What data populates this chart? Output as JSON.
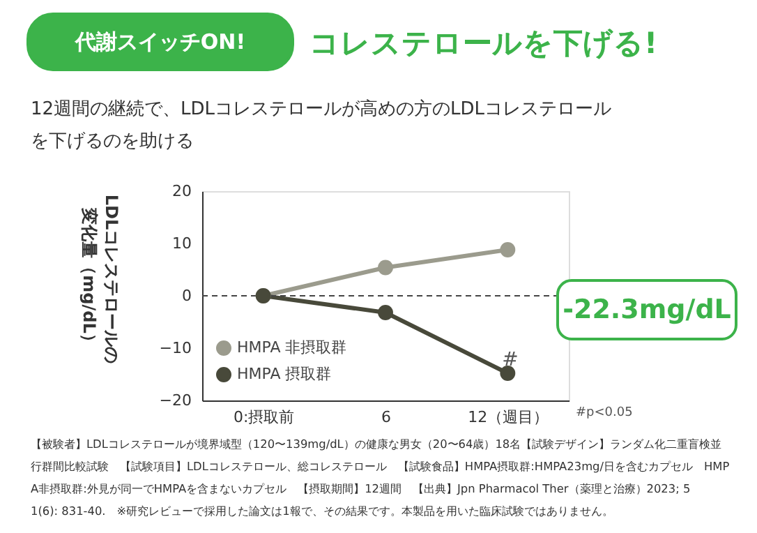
{
  "chart_data": {
    "type": "line",
    "title": "コレステロールを下げる!",
    "subtitle": "12週間の継続で、LDLコレステロールが高めの方のLDLコレステロールを下げるのを助ける",
    "ylabel": "LDLコレステロールの変化量（mg/dL）",
    "categories": [
      "0:摂取前",
      "6",
      "12（週目）"
    ],
    "series": [
      {
        "name": "HMPA 非摂取群",
        "color": "#9b9b8d",
        "values": [
          0,
          5.4,
          8.8
        ]
      },
      {
        "name": "HMPA 摂取群",
        "color": "#48493a",
        "values": [
          0,
          -3.2,
          -14.8
        ]
      }
    ],
    "ylim": [
      -20,
      20
    ],
    "yticks": [
      -20,
      -10,
      0,
      10,
      20
    ],
    "grid": false,
    "legend": "bottom left",
    "marker": "circle",
    "line_style": "solid",
    "ref_lines": [
      {
        "axis": "y",
        "value": 0,
        "line_style": "dashed",
        "color": "#444444"
      }
    ],
    "annotations": [
      "代謝スイッチON!",
      "#",
      "-22.3mg/dL",
      "#p<0.05",
      "【被験者】LDLコレステロールが境界域型（120〜139mg/dL）の健康な男女（20〜64歳）18名【試験デザイン】ランダム化二重盲検並行群間比較試験　【試験項目】LDLコレステロール、総コレステロール　【試験食品】HMPA摂取群:HMPA23mg/日を含むカプセル　HMPA非摂取群:外見が同一でHMPAを含まないカプセル　【摂取期間】12週間　【出典】Jpn  Pharmacol  Ther（薬理と治療）2023; 51(6): 831-40.　※研究レビューで採用した論文は1報で、その結果です。本製品を用いた臨床試験ではありません。"
    ]
  }
}
